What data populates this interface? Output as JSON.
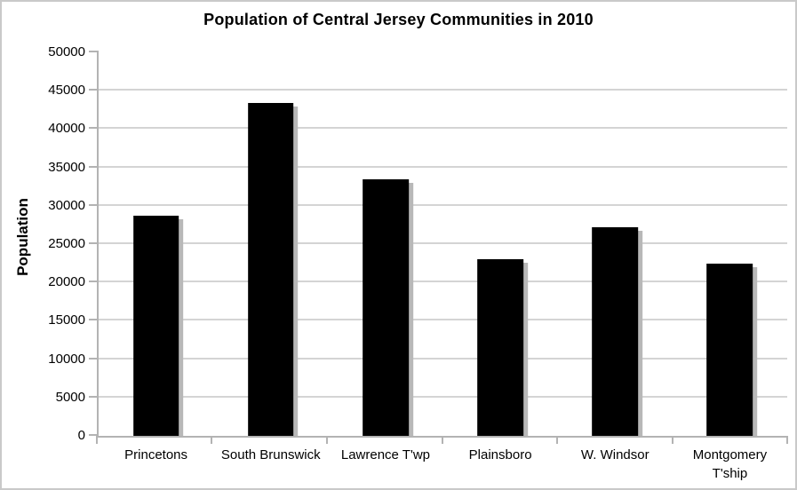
{
  "chart_data": {
    "type": "bar",
    "title": "Population of Central Jersey Communities in 2010",
    "xlabel": "",
    "ylabel": "Population",
    "categories": [
      "Princetons",
      "South Brunswick",
      "Lawrence T'wp",
      "Plainsboro",
      "W. Windsor",
      "Montgomery T'ship"
    ],
    "values": [
      28700,
      43400,
      33500,
      23000,
      27200,
      22400
    ],
    "ylim": [
      0,
      50000
    ],
    "ytick_step": 5000,
    "ytick_labels": [
      "0",
      "5000",
      "10000",
      "15000",
      "20000",
      "25000",
      "30000",
      "35000",
      "40000",
      "45000",
      "50000"
    ],
    "grid": "horizontal",
    "legend_position": "none",
    "bar_color": "#000000",
    "bar_shadow_color": "#b8b8b8",
    "gridline_color": "#d4d4d4",
    "axis_color": "#b3b3b3"
  }
}
